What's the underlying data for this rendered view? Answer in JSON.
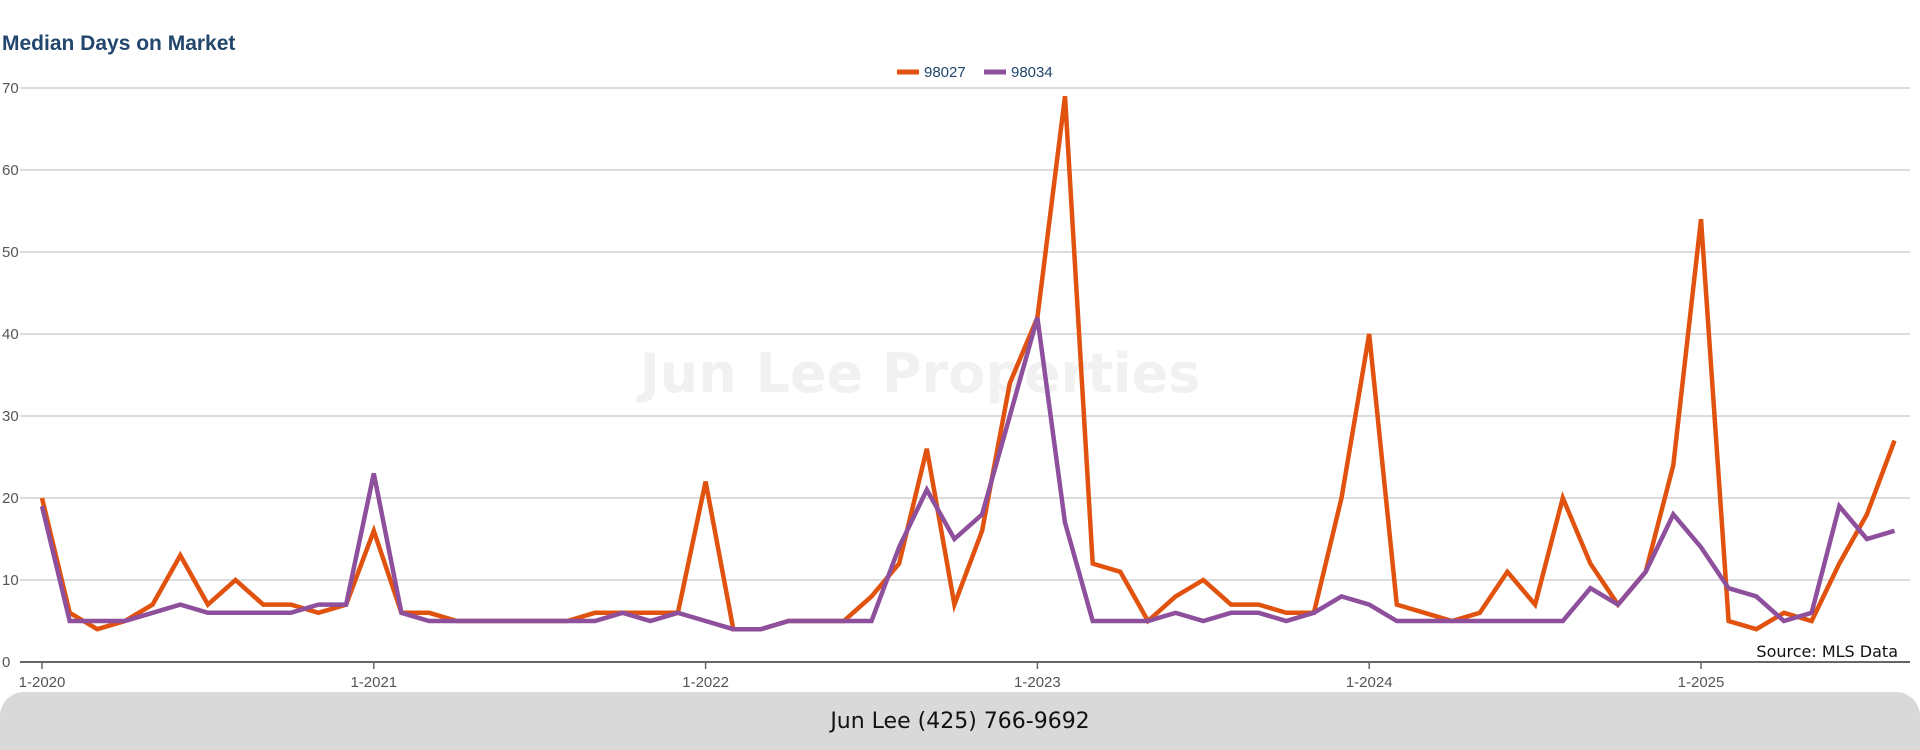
{
  "chart_data": {
    "type": "line",
    "title": "Median Days on Market",
    "xlabel": "",
    "ylabel": "",
    "ylim": [
      0,
      70
    ],
    "yticks": [
      0,
      10,
      20,
      30,
      40,
      50,
      60,
      70
    ],
    "xticks": [
      "1-2020",
      "1-2021",
      "1-2022",
      "1-2023",
      "1-2024",
      "1-2025"
    ],
    "x_start": "1-2020",
    "x_end": "8-2025",
    "grid": true,
    "legend_position": "top-center",
    "series": [
      {
        "name": "98027",
        "color": "#e0520e",
        "values": [
          20,
          6,
          4,
          5,
          7,
          13,
          7,
          10,
          7,
          7,
          6,
          7,
          16,
          6,
          6,
          5,
          5,
          5,
          5,
          5,
          6,
          6,
          6,
          6,
          22,
          4,
          4,
          5,
          5,
          5,
          8,
          12,
          26,
          7,
          16,
          34,
          42,
          69,
          12,
          11,
          5,
          8,
          10,
          7,
          7,
          6,
          6,
          20,
          40,
          7,
          6,
          5,
          6,
          11,
          7,
          20,
          12,
          7,
          11,
          24,
          54,
          5,
          4,
          6,
          5,
          12,
          18,
          27
        ]
      },
      {
        "name": "98034",
        "color": "#8e4f9d",
        "values": [
          19,
          5,
          5,
          5,
          6,
          7,
          6,
          6,
          6,
          6,
          7,
          7,
          23,
          6,
          5,
          5,
          5,
          5,
          5,
          5,
          5,
          6,
          5,
          6,
          5,
          4,
          4,
          5,
          5,
          5,
          5,
          14,
          21,
          15,
          18,
          30,
          42,
          17,
          5,
          5,
          5,
          6,
          5,
          6,
          6,
          5,
          6,
          8,
          7,
          5,
          5,
          5,
          5,
          5,
          5,
          5,
          9,
          7,
          11,
          18,
          14,
          9,
          8,
          5,
          6,
          19,
          15,
          16
        ]
      }
    ],
    "watermark": "Jun Lee Properties",
    "source": "Source: MLS Data"
  },
  "footer": {
    "contact": "Jun Lee (425) 766-9692"
  }
}
